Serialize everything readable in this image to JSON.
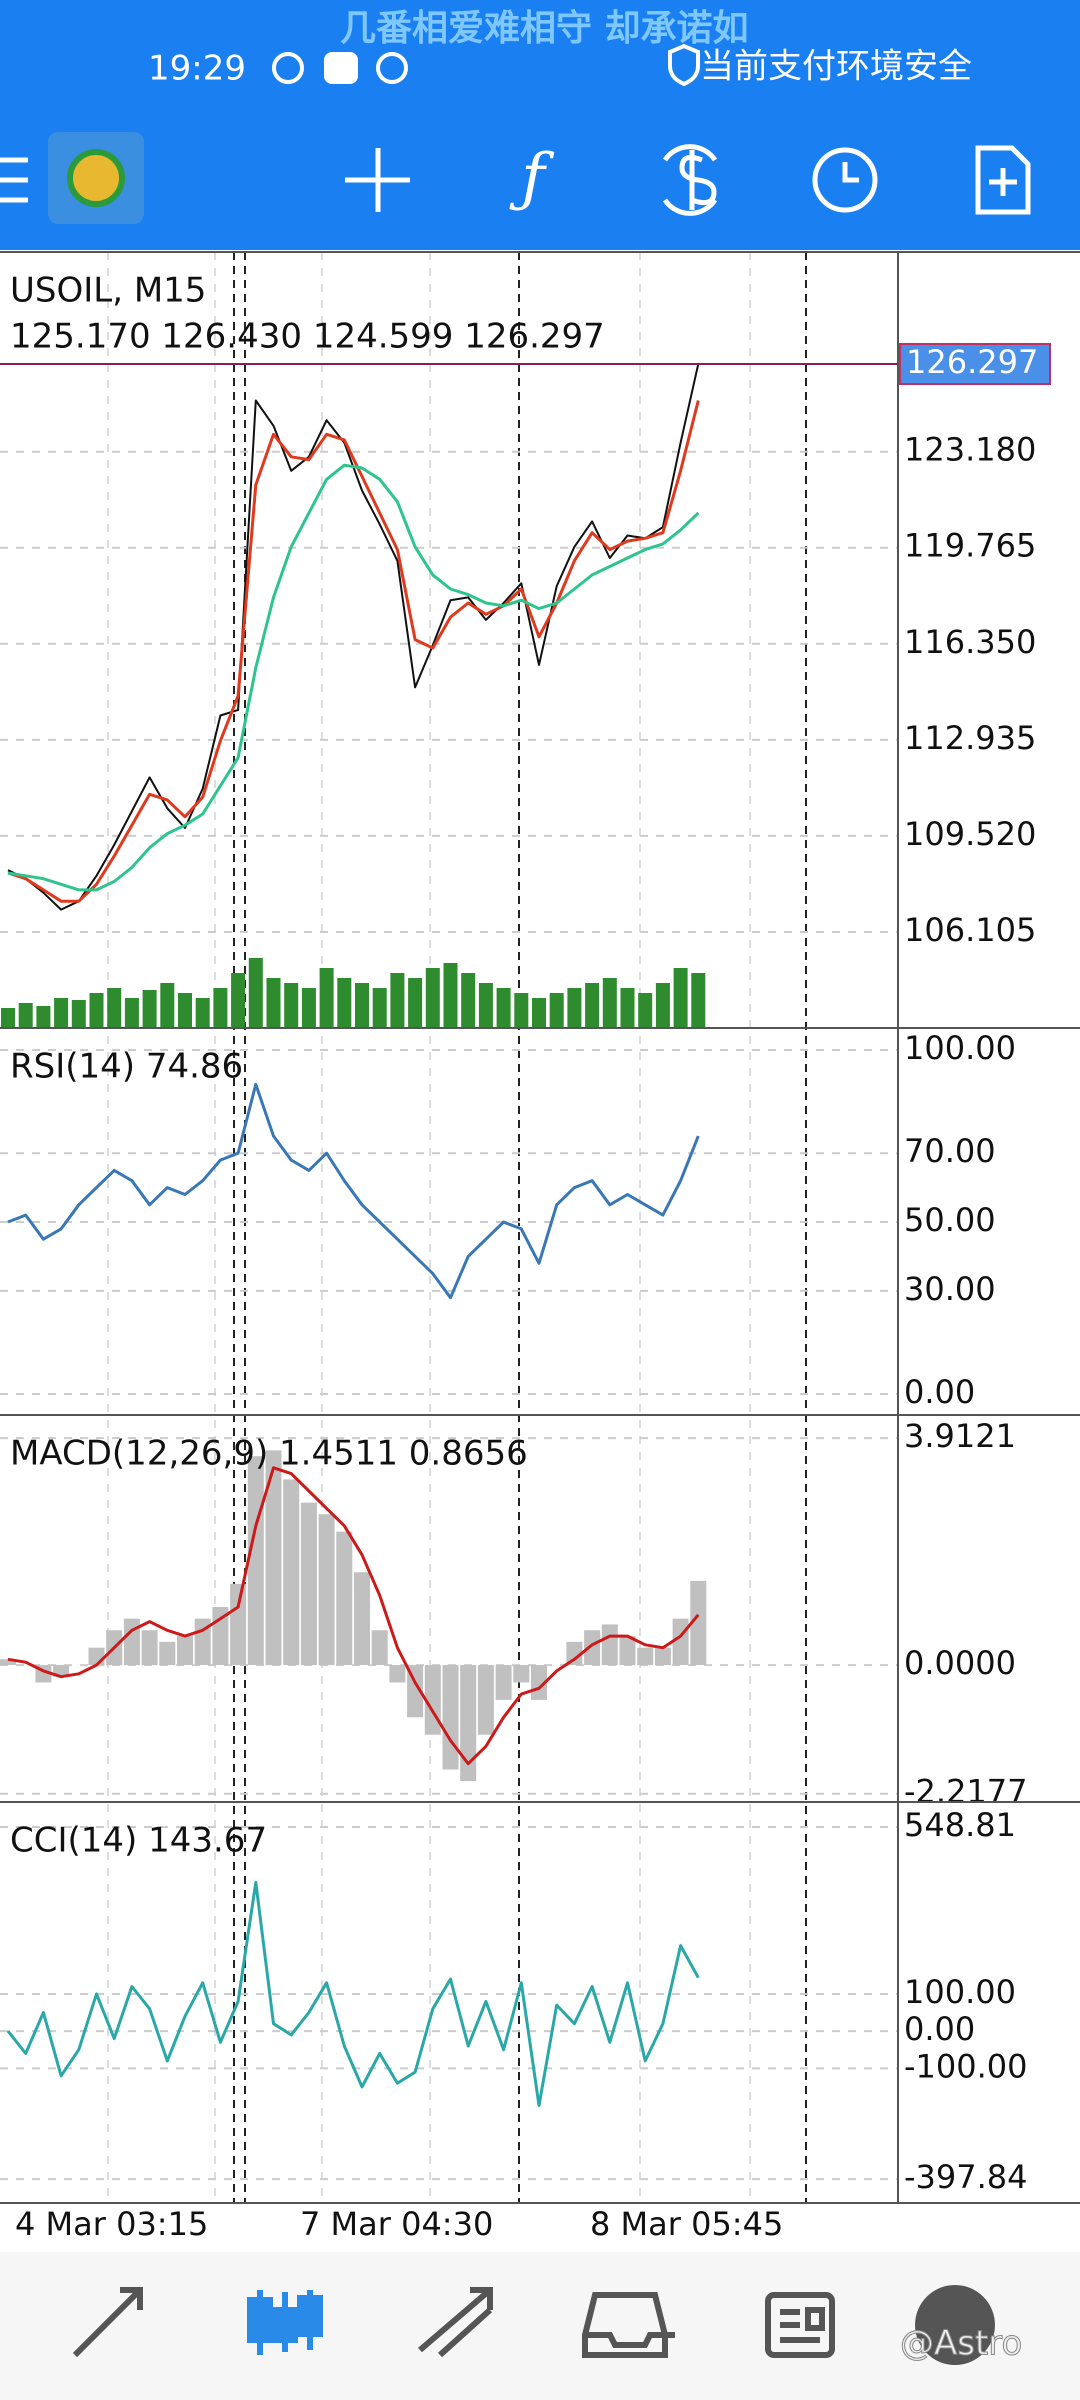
{
  "status_bar": {
    "marquee": "几番相爱难相守 却承诺如",
    "time": "19:29",
    "security": "当前支付环境安全"
  },
  "chart_data": [
    {
      "type": "line",
      "title": "USOIL, M15",
      "subtitle": "125.170 126.430 124.599 126.297",
      "ylim": [
        102.69,
        130.28
      ],
      "yticks": [
        {
          "value": 123.18,
          "label": "123.180"
        },
        {
          "value": 119.765,
          "label": "119.765"
        },
        {
          "value": 116.35,
          "label": "116.350"
        },
        {
          "value": 112.935,
          "label": "112.935"
        },
        {
          "value": 109.52,
          "label": "109.520"
        },
        {
          "value": 106.105,
          "label": "106.105"
        }
      ],
      "last_price": {
        "value": 126.297,
        "label": "126.297",
        "color": "#4a90e8"
      },
      "series": [
        {
          "color": "#111111",
          "values": [
            108.3,
            108.0,
            107.5,
            106.9,
            107.2,
            108.1,
            109.2,
            110.4,
            111.6,
            110.5,
            109.8,
            111.2,
            113.8,
            114.0,
            125.0,
            124.1,
            122.5,
            123.0,
            124.3,
            123.5,
            121.8,
            120.6,
            119.3,
            114.8,
            116.3,
            117.9,
            118.0,
            117.2,
            117.8,
            118.5,
            115.6,
            118.4,
            119.8,
            120.7,
            119.4,
            120.2,
            120.1,
            120.5,
            123.5,
            126.3
          ]
        },
        {
          "color": "#e03a1e",
          "values": [
            108.2,
            108.0,
            107.6,
            107.2,
            107.2,
            107.8,
            108.8,
            109.9,
            111.0,
            110.8,
            110.2,
            110.9,
            112.9,
            114.5,
            122.0,
            123.8,
            123.0,
            122.9,
            123.8,
            123.6,
            122.3,
            121.0,
            119.7,
            116.5,
            116.2,
            117.3,
            117.8,
            117.4,
            117.7,
            118.3,
            116.6,
            117.8,
            119.3,
            120.3,
            119.7,
            120.0,
            120.1,
            120.3,
            122.5,
            125.0
          ]
        },
        {
          "color": "#2ec48e",
          "values": [
            108.2,
            108.1,
            108.0,
            107.8,
            107.6,
            107.6,
            107.9,
            108.4,
            109.1,
            109.6,
            109.9,
            110.3,
            111.3,
            112.3,
            115.5,
            118.0,
            119.8,
            121.0,
            122.2,
            122.7,
            122.6,
            122.2,
            121.4,
            119.8,
            118.8,
            118.3,
            118.1,
            117.8,
            117.7,
            117.9,
            117.6,
            117.8,
            118.3,
            118.8,
            119.1,
            119.4,
            119.7,
            119.9,
            120.4,
            121.0
          ]
        }
      ],
      "volume": {
        "color": "#2e8b2e",
        "ylim": [
          0,
          100
        ],
        "values": [
          20,
          25,
          22,
          30,
          28,
          35,
          40,
          30,
          38,
          45,
          35,
          30,
          40,
          55,
          70,
          50,
          45,
          40,
          60,
          50,
          45,
          40,
          55,
          50,
          60,
          65,
          55,
          45,
          40,
          35,
          30,
          35,
          40,
          45,
          50,
          40,
          35,
          45,
          60,
          55
        ]
      }
    },
    {
      "type": "line",
      "title": "RSI(14) 74.86",
      "ylim": [
        -6.1,
        106.4
      ],
      "yticks": [
        {
          "value": 100,
          "label": "100.00"
        },
        {
          "value": 70,
          "label": "70.00"
        },
        {
          "value": 50,
          "label": "50.00"
        },
        {
          "value": 30,
          "label": "30.00"
        },
        {
          "value": 0,
          "label": "0.00"
        }
      ],
      "series": [
        {
          "color": "#3a78b5",
          "values": [
            50,
            52,
            45,
            48,
            55,
            60,
            65,
            62,
            55,
            60,
            58,
            62,
            68,
            70,
            90,
            75,
            68,
            65,
            70,
            62,
            55,
            50,
            45,
            40,
            35,
            28,
            40,
            45,
            50,
            48,
            38,
            55,
            60,
            62,
            55,
            58,
            55,
            52,
            62,
            75
          ]
        }
      ]
    },
    {
      "type": "bar",
      "title": "MACD(12,26,9) 1.4511 0.8656",
      "ylim": [
        -2.36,
        4.31
      ],
      "yticks": [
        {
          "value": 3.9121,
          "label": "3.9121"
        },
        {
          "value": 0,
          "label": "0.0000"
        },
        {
          "value": -2.2177,
          "label": "-2.2177"
        }
      ],
      "series": [
        {
          "color": "#c0c0c0",
          "values": [
            0.1,
            0.0,
            -0.3,
            -0.2,
            0,
            0.3,
            0.6,
            0.8,
            0.6,
            0.4,
            0.5,
            0.8,
            1.0,
            1.4,
            3.6,
            3.7,
            3.2,
            2.8,
            2.6,
            2.3,
            1.6,
            0.6,
            -0.3,
            -0.9,
            -1.2,
            -1.8,
            -2.0,
            -1.2,
            -0.6,
            -0.3,
            -0.6,
            0,
            0.4,
            0.6,
            0.7,
            0.5,
            0.3,
            0.3,
            0.8,
            1.4511
          ]
        },
        {
          "type": "line",
          "color": "#cc1a1a",
          "values": [
            0.1,
            0.05,
            -0.1,
            -0.2,
            -0.15,
            0,
            0.3,
            0.6,
            0.75,
            0.6,
            0.5,
            0.6,
            0.8,
            1.0,
            2.4,
            3.4,
            3.3,
            3.0,
            2.7,
            2.4,
            1.9,
            1.2,
            0.3,
            -0.3,
            -0.8,
            -1.3,
            -1.7,
            -1.4,
            -0.9,
            -0.5,
            -0.4,
            -0.1,
            0.1,
            0.35,
            0.5,
            0.5,
            0.35,
            0.3,
            0.5,
            0.8656
          ]
        }
      ]
    },
    {
      "type": "line",
      "title": "CCI(14) 143.67",
      "ylim": [
        -462,
        616
      ],
      "yticks": [
        {
          "value": 548.81,
          "label": "548.81"
        },
        {
          "value": 100,
          "label": "100.00"
        },
        {
          "value": 0,
          "label": "0.00"
        },
        {
          "value": -100,
          "label": "-100.00"
        },
        {
          "value": -397.84,
          "label": "-397.84"
        }
      ],
      "series": [
        {
          "color": "#2aa8a8",
          "values": [
            0,
            -60,
            50,
            -120,
            -50,
            100,
            -20,
            120,
            60,
            -80,
            40,
            130,
            -30,
            80,
            400,
            20,
            -10,
            50,
            130,
            -40,
            -150,
            -60,
            -140,
            -110,
            60,
            140,
            -40,
            80,
            -50,
            130,
            -200,
            70,
            20,
            120,
            -30,
            130,
            -80,
            20,
            230,
            143.67
          ]
        }
      ]
    }
  ],
  "x_axis": {
    "labels": [
      "4 Mar 03:15",
      "7 Mar 04:30",
      "8 Mar 05:45"
    ]
  },
  "watermark": "@Astro"
}
